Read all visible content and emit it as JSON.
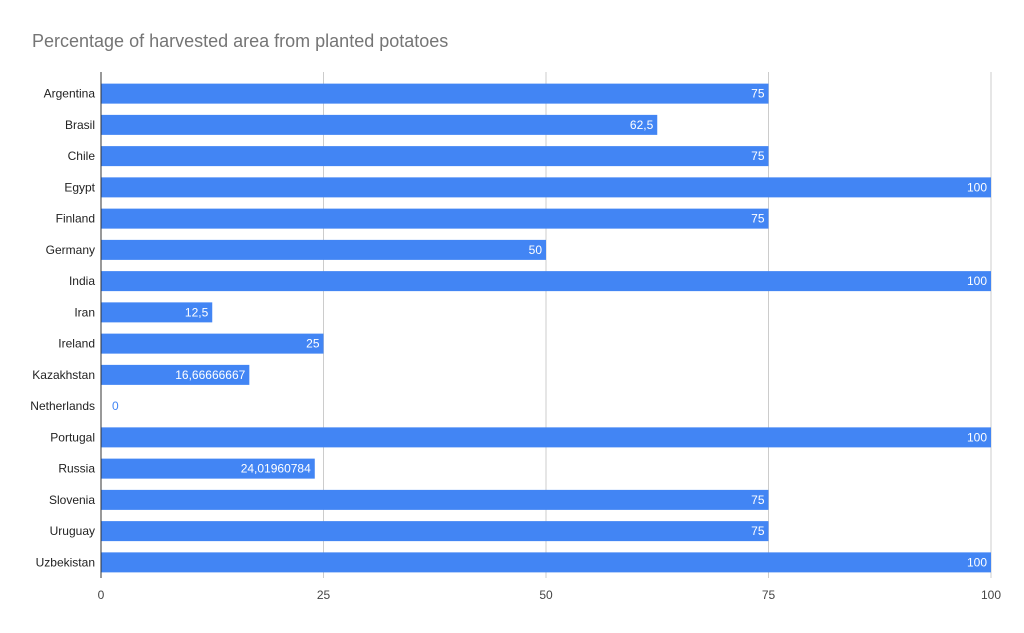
{
  "chart_data": {
    "type": "bar",
    "orientation": "horizontal",
    "title": "Percentage of harvested area from planted potatoes",
    "xlabel": "",
    "ylabel": "",
    "xlim": [
      0,
      100
    ],
    "ticks": [
      0,
      25,
      50,
      75,
      100
    ],
    "tick_labels": [
      "0",
      "25",
      "50",
      "75",
      "100"
    ],
    "grid": true,
    "legend": "none",
    "bar_color": "#4285f4",
    "grid_color": "#cccccc",
    "axis_color": "#333333",
    "label_inside_color": "#ffffff",
    "label_outside_color": "#4285f4",
    "categories": [
      "Argentina",
      "Brasil",
      "Chile",
      "Egypt",
      "Finland",
      "Germany",
      "India",
      "Iran",
      "Ireland",
      "Kazakhstan",
      "Netherlands",
      "Portugal",
      "Russia",
      "Slovenia",
      "Uruguay",
      "Uzbekistan"
    ],
    "values": [
      75,
      62.5,
      75,
      100,
      75,
      50,
      100,
      12.5,
      25,
      16.66666667,
      0,
      100,
      24.01960784,
      75,
      75,
      100
    ],
    "value_labels": [
      "75",
      "62,5",
      "75",
      "100",
      "75",
      "50",
      "100",
      "12,5",
      "25",
      "16,66666667",
      "0",
      "100",
      "24,01960784",
      "75",
      "75",
      "100"
    ]
  }
}
